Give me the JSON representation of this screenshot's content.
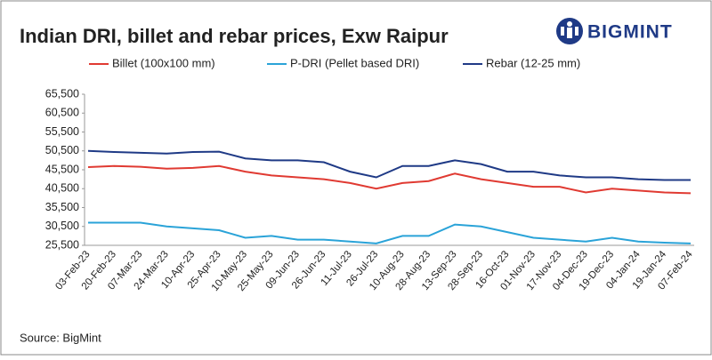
{
  "chart_data": {
    "type": "line",
    "title": "Indian DRI, billet and rebar prices, Exw Raipur",
    "logo": "BIGMINT",
    "source": "Source: BigMint",
    "categories": [
      "03-Feb-23",
      "20-Feb-23",
      "07-Mar-23",
      "24-Mar-23",
      "10-Apr-23",
      "25-Apr-23",
      "10-May-23",
      "25-May-23",
      "09-Jun-23",
      "26-Jun-23",
      "11-Jul-23",
      "26-Jul-23",
      "10-Aug-23",
      "28-Aug-23",
      "13-Sep-23",
      "28-Sep-23",
      "16-Oct-23",
      "01-Nov-23",
      "17-Nov-23",
      "04-Dec-23",
      "19-Dec-23",
      "04-Jan-24",
      "19-Jan-24",
      "07-Feb-24"
    ],
    "series": [
      {
        "name": "Billet (100x100 mm)",
        "color": "#e03a32",
        "values": [
          46200,
          46500,
          46300,
          45800,
          46000,
          46500,
          45000,
          44000,
          43500,
          43000,
          42000,
          40500,
          42000,
          42500,
          44500,
          43000,
          42000,
          41000,
          41000,
          39500,
          40500,
          40000,
          39500,
          39300
        ]
      },
      {
        "name": "P-DRI (Pellet based DRI)",
        "color": "#2aa3d8",
        "values": [
          31500,
          31500,
          31500,
          30500,
          30000,
          29500,
          27500,
          28000,
          27000,
          27000,
          26500,
          26000,
          28000,
          28000,
          31000,
          30500,
          29000,
          27500,
          27000,
          26500,
          27500,
          26500,
          26200,
          26000
        ]
      },
      {
        "name": "Rebar (12-25 mm)",
        "color": "#1f3a86",
        "values": [
          50500,
          50200,
          50000,
          49800,
          50200,
          50300,
          48500,
          48000,
          48000,
          47500,
          45000,
          43500,
          46500,
          46500,
          48000,
          47000,
          45000,
          45000,
          44000,
          43500,
          43500,
          43000,
          42800,
          42800
        ]
      }
    ],
    "ylim": [
      25500,
      65500
    ],
    "yticks": [
      {
        "value": 25500,
        "label": "25,500"
      },
      {
        "value": 30500,
        "label": "30,500"
      },
      {
        "value": 35500,
        "label": "35,500"
      },
      {
        "value": 40500,
        "label": "40,500"
      },
      {
        "value": 45500,
        "label": "45,500"
      },
      {
        "value": 50500,
        "label": "50,500"
      },
      {
        "value": 55500,
        "label": "55,500"
      },
      {
        "value": 60500,
        "label": "60,500"
      },
      {
        "value": 65500,
        "label": "65,500"
      }
    ],
    "grid": false
  }
}
